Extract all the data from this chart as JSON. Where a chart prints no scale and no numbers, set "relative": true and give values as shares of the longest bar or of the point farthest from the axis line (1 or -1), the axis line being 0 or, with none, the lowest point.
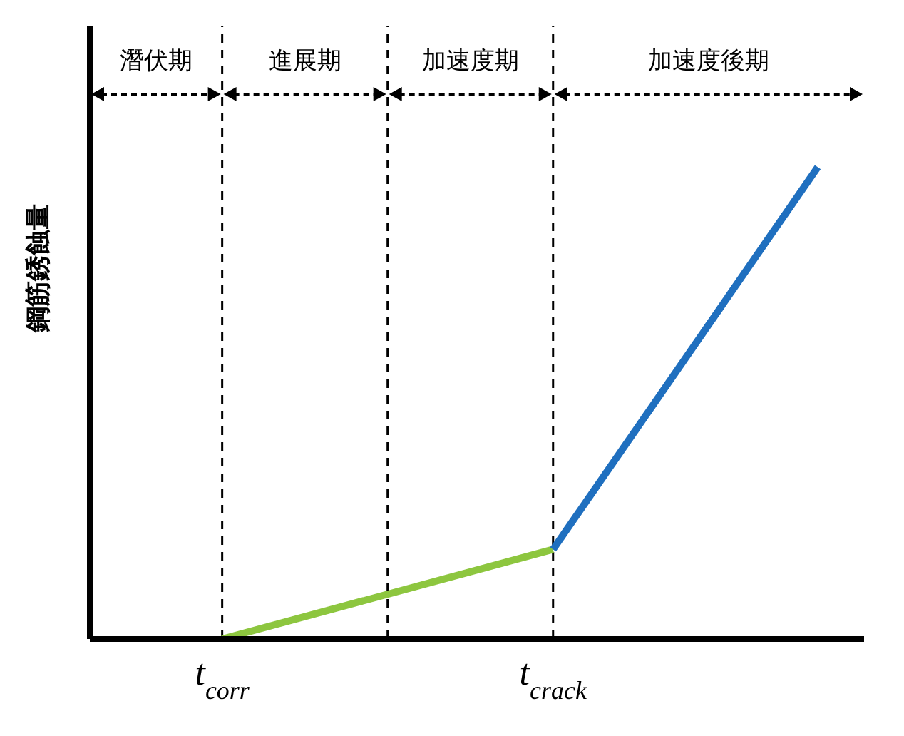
{
  "chart_data": {
    "type": "line",
    "relative": true,
    "ylabel": "鋼筋銹蝕量",
    "categories": [
      null,
      null,
      "t$_{corr}$",
      null,
      null,
      null,
      null,
      "t$_{crack}$",
      null,
      null,
      null,
      null
    ],
    "series": [
      {
        "color": "#8dc63f",
        "values": [
          null,
          null,
          0,
          null,
          null,
          null,
          null,
          0.19,
          null,
          null,
          null,
          null
        ]
      },
      {
        "color": "#1f6fbf",
        "values": [
          null,
          null,
          null,
          null,
          null,
          null,
          null,
          0.19,
          null,
          null,
          null,
          1
        ]
      }
    ],
    "annotations": [
      "潛伏期",
      "進展期",
      "加速度期",
      "加速度後期"
    ],
    "marker": "none",
    "line_style": "solid",
    "grid": "x",
    "legend": false
  }
}
